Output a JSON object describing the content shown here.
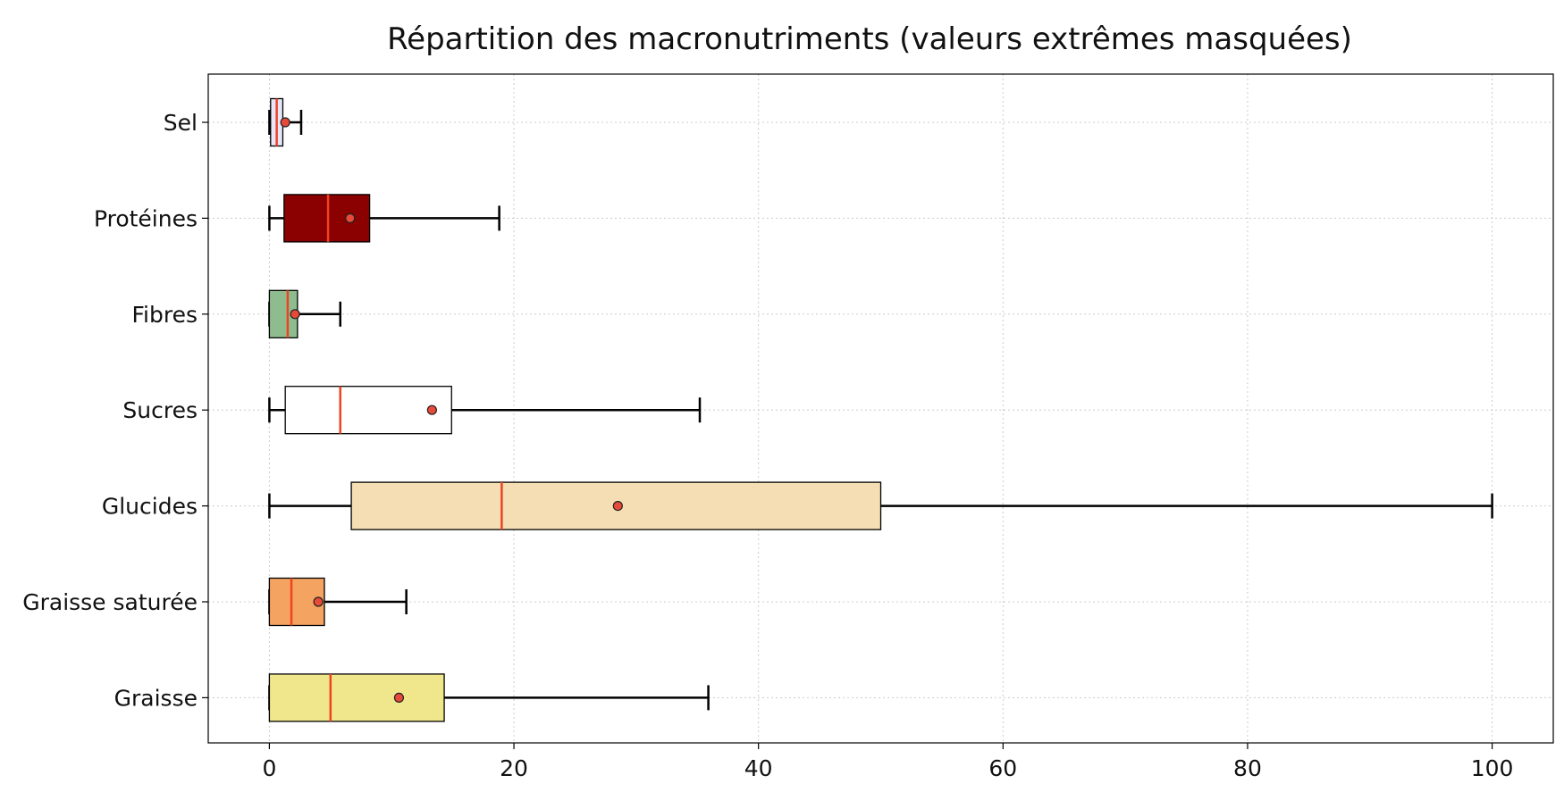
{
  "chart_data": {
    "type": "boxplot",
    "orientation": "horizontal",
    "title": "Répartition des macronutriments (valeurs extrêmes masquées)",
    "xlim": [
      -5,
      105
    ],
    "x_ticks": [
      0,
      20,
      40,
      60,
      80,
      100
    ],
    "grid": true,
    "categories": [
      "Graisse",
      "Graisse saturée",
      "Glucides",
      "Sucres",
      "Fibres",
      "Protéines",
      "Sel"
    ],
    "series": [
      {
        "category": "Graisse",
        "whisker_low": 0,
        "q1": 0,
        "median": 5.0,
        "mean": 10.6,
        "q3": 14.3,
        "whisker_high": 35.9,
        "color": "#f0e68c"
      },
      {
        "category": "Graisse saturée",
        "whisker_low": 0,
        "q1": 0,
        "median": 1.8,
        "mean": 4.0,
        "q3": 4.5,
        "whisker_high": 11.2,
        "color": "#f4a460"
      },
      {
        "category": "Glucides",
        "whisker_low": 0,
        "q1": 6.7,
        "median": 19.0,
        "mean": 28.5,
        "q3": 50.0,
        "whisker_high": 100.0,
        "color": "#f5deb3"
      },
      {
        "category": "Sucres",
        "whisker_low": 0,
        "q1": 1.3,
        "median": 5.8,
        "mean": 13.3,
        "q3": 14.9,
        "whisker_high": 35.2,
        "color": "#ffffff"
      },
      {
        "category": "Fibres",
        "whisker_low": 0,
        "q1": 0,
        "median": 1.5,
        "mean": 2.1,
        "q3": 2.3,
        "whisker_high": 5.8,
        "color": "#8fbc8f"
      },
      {
        "category": "Protéines",
        "whisker_low": 0,
        "q1": 1.2,
        "median": 4.8,
        "mean": 6.6,
        "q3": 8.2,
        "whisker_high": 18.8,
        "color": "#8b0000"
      },
      {
        "category": "Sel",
        "whisker_low": 0,
        "q1": 0.1,
        "median": 0.6,
        "mean": 1.3,
        "q3": 1.1,
        "whisker_high": 2.6,
        "color": "#e6e6fa"
      }
    ],
    "median_color": "#ee4422",
    "mean_marker_color": "#e84a3a"
  }
}
